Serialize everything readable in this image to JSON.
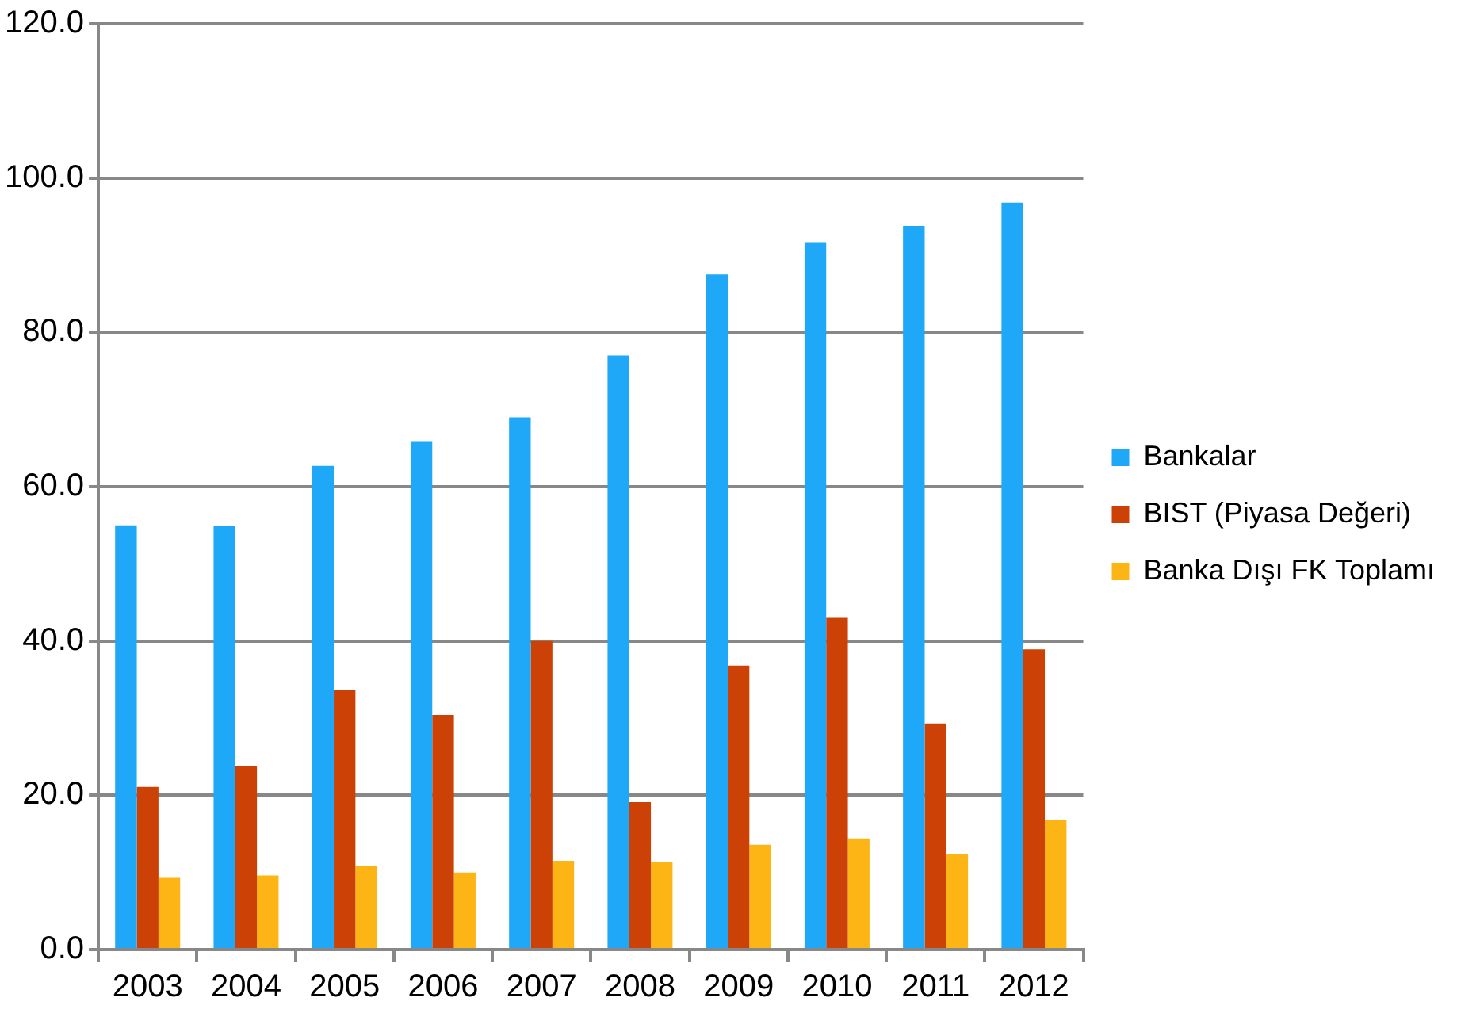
{
  "chart_data": {
    "type": "bar",
    "categories": [
      "2003",
      "2004",
      "2005",
      "2006",
      "2007",
      "2008",
      "2009",
      "2010",
      "2011",
      "2012"
    ],
    "series": [
      {
        "name": "Bankalar",
        "color": "#1fa8f8",
        "values": [
          55.0,
          54.9,
          62.7,
          65.9,
          69.0,
          77.0,
          87.5,
          91.7,
          93.8,
          96.8
        ]
      },
      {
        "name": "BIST (Piyasa Değeri)",
        "color": "#cc4106",
        "values": [
          21.1,
          23.8,
          33.6,
          30.4,
          40.0,
          19.1,
          36.8,
          43.0,
          29.3,
          38.9
        ]
      },
      {
        "name": "Banka Dışı FK Toplamı",
        "color": "#fdb515",
        "values": [
          9.3,
          9.6,
          10.8,
          10.0,
          11.5,
          11.4,
          13.6,
          14.4,
          12.4,
          16.8
        ]
      }
    ],
    "ylim": [
      0,
      120
    ],
    "yticks": [
      {
        "value": 0,
        "label": "0.0"
      },
      {
        "value": 20,
        "label": "20.0"
      },
      {
        "value": 40,
        "label": "40.0"
      },
      {
        "value": 60,
        "label": "60.0"
      },
      {
        "value": 80,
        "label": "80.0"
      },
      {
        "value": 100,
        "label": "100.0"
      },
      {
        "value": 120,
        "label": "120.0"
      }
    ],
    "grid": "y",
    "legend": "right"
  }
}
